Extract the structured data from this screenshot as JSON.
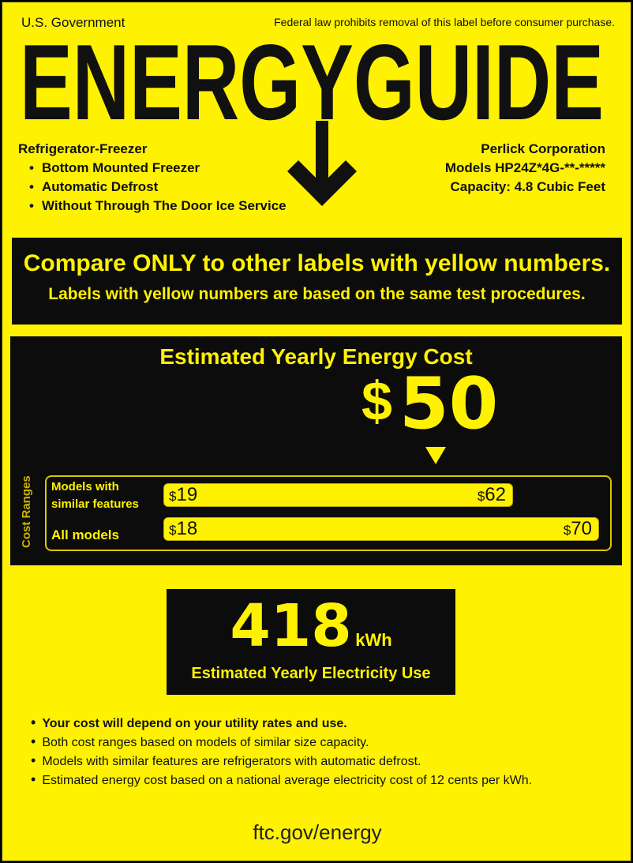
{
  "header": {
    "government": "U.S. Government",
    "law_notice": "Federal law prohibits removal of this label before consumer purchase.",
    "title": "ENERGYGUIDE"
  },
  "product": {
    "type": "Refrigerator-Freezer",
    "features": [
      "Bottom Mounted Freezer",
      "Automatic Defrost",
      "Without Through The Door Ice Service"
    ],
    "manufacturer": "Perlick Corporation",
    "models": "Models HP24Z*4G-**-*****",
    "capacity": "Capacity: 4.8 Cubic Feet"
  },
  "compare": {
    "headline": "Compare ONLY to other labels with yellow numbers.",
    "subline": "Labels with yellow numbers are based on the same test procedures."
  },
  "cost": {
    "heading": "Estimated Yearly Energy Cost",
    "currency": "$",
    "value": "50",
    "ranges_label": "Cost Ranges",
    "similar": {
      "label_line1": "Models with",
      "label_line2": "similar features",
      "min": "19",
      "max": "62"
    },
    "all": {
      "label": "All models",
      "min": "18",
      "max": "70"
    }
  },
  "electricity": {
    "value": "418",
    "unit": "kWh",
    "label": "Estimated Yearly Electricity Use"
  },
  "notes": [
    "Your cost will depend on your utility rates and use.",
    "Both cost ranges based on models of similar size capacity.",
    "Models with similar features are refrigerators with automatic defrost.",
    "Estimated energy cost based on a national average electricity cost of 12 cents per kWh."
  ],
  "footer": {
    "url": "ftc.gov/energy"
  },
  "colors": {
    "label_yellow": "#fff200",
    "panel_black": "#0c0c0c"
  }
}
